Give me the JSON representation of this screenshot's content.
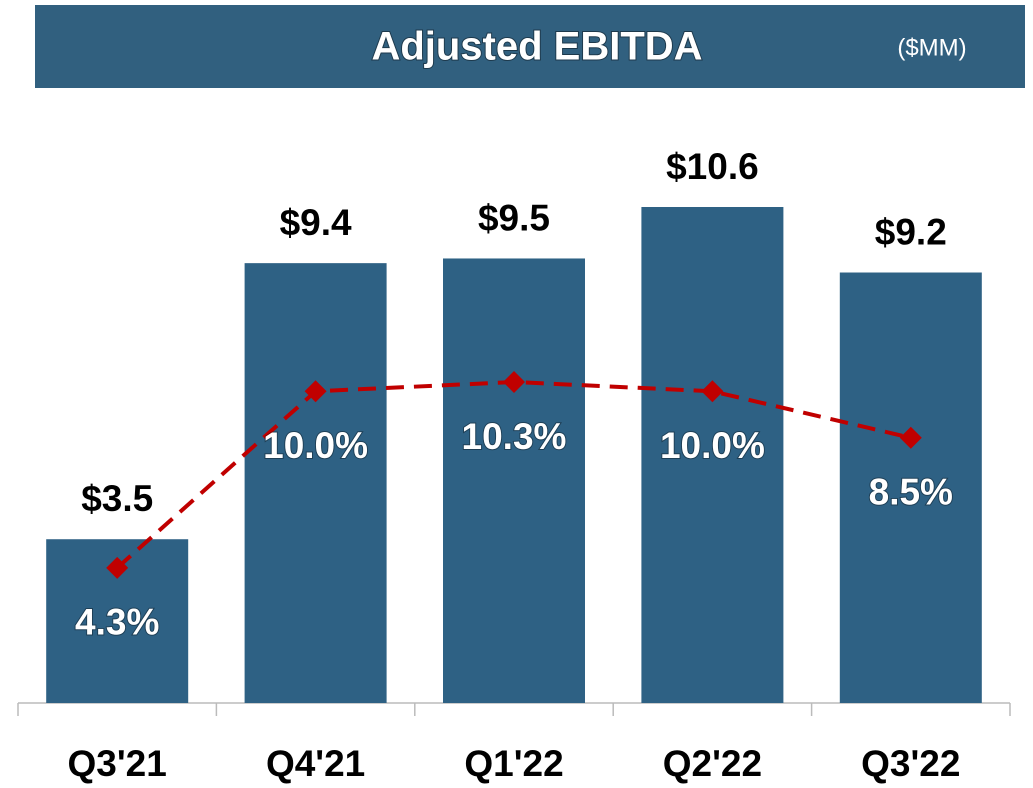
{
  "chart_data": {
    "type": "bar-line",
    "title": "Adjusted EBITDA",
    "subtitle": "($MM)",
    "categories": [
      "Q3'21",
      "Q4'21",
      "Q1'22",
      "Q2'22",
      "Q3'22"
    ],
    "series": [
      {
        "type": "bar",
        "color": "#2e6184",
        "values": [
          3.5,
          9.4,
          9.5,
          10.6,
          9.2
        ],
        "value_labels": [
          "$3.5",
          "$9.4",
          "$9.5",
          "$10.6",
          "$9.2"
        ]
      },
      {
        "type": "line",
        "color": "#c00000",
        "values": [
          4.3,
          10.0,
          10.3,
          10.0,
          8.5
        ],
        "value_labels": [
          "4.3%",
          "10.0%",
          "10.3%",
          "10.0%",
          "8.5%"
        ]
      }
    ]
  }
}
